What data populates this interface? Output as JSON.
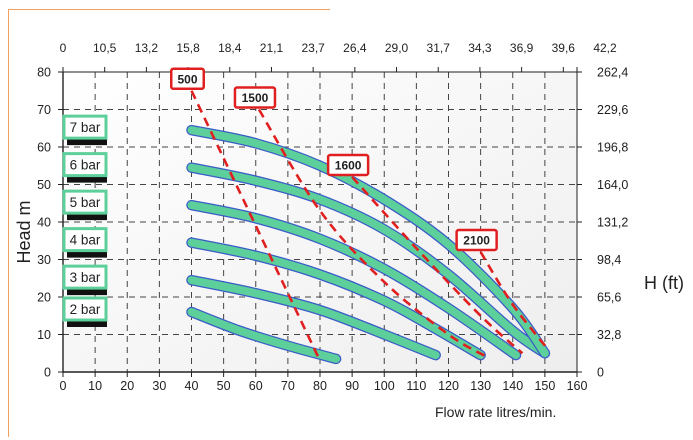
{
  "chart_data": {
    "type": "line",
    "xlabel": "Flow rate litres/min.",
    "ylabel_left": "Head m",
    "ylabel_right": "H (ft)",
    "xlim": [
      0,
      160
    ],
    "ylim": [
      0,
      80
    ],
    "x_ticks": [
      0,
      10,
      20,
      30,
      40,
      50,
      60,
      70,
      80,
      90,
      100,
      110,
      120,
      130,
      140,
      150,
      160
    ],
    "y_ticks": [
      0,
      10,
      20,
      30,
      40,
      50,
      60,
      70,
      80
    ],
    "top_axis_ticks": [
      "0",
      "10,5",
      "13,2",
      "15,8",
      "18,4",
      "21,1",
      "23,7",
      "26,4",
      "29,0",
      "31,7",
      "34,3",
      "36,9",
      "39,6",
      "42,2"
    ],
    "right_axis_ticks": [
      "0",
      "32,8",
      "65,6",
      "98,4",
      "131,2",
      "164,0",
      "196,8",
      "229,6",
      "262,4"
    ],
    "grid": true,
    "series": [
      {
        "name": "2 bar",
        "x": [
          40,
          55,
          70,
          85
        ],
        "y": [
          16,
          11,
          7,
          3.5
        ]
      },
      {
        "name": "3 bar",
        "x": [
          40,
          60,
          80,
          100,
          116
        ],
        "y": [
          24.5,
          21,
          16.5,
          10,
          4.5
        ]
      },
      {
        "name": "4 bar",
        "x": [
          40,
          60,
          80,
          100,
          115,
          130
        ],
        "y": [
          34.5,
          31,
          26,
          19,
          12,
          4.5
        ]
      },
      {
        "name": "5 bar",
        "x": [
          40,
          60,
          80,
          100,
          120,
          141
        ],
        "y": [
          44.5,
          41,
          35.5,
          27.5,
          17,
          4.5
        ]
      },
      {
        "name": "6 bar",
        "x": [
          40,
          60,
          80,
          100,
          120,
          140,
          150
        ],
        "y": [
          54.5,
          51,
          46,
          38,
          26,
          11,
          5
        ]
      },
      {
        "name": "7 bar",
        "x": [
          40,
          60,
          80,
          100,
          120,
          140,
          150
        ],
        "y": [
          64.5,
          61,
          55,
          46,
          34,
          17,
          5
        ]
      }
    ],
    "rpm_lines": [
      {
        "label": "500",
        "x": [
          40,
          80
        ],
        "y": [
          75,
          3
        ]
      },
      {
        "label": "1500",
        "x": [
          61,
          80,
          100,
          120,
          132
        ],
        "y": [
          70,
          43,
          24,
          10,
          4
        ]
      },
      {
        "label": "1600",
        "x": [
          90,
          110,
          130,
          143
        ],
        "y": [
          52,
          33,
          15,
          5
        ]
      },
      {
        "label": "2100",
        "x": [
          130,
          140,
          151
        ],
        "y": [
          32,
          18,
          6
        ]
      }
    ]
  },
  "colors": {
    "pressure_curve": "#5ccf9a",
    "pressure_curve_edge": "#3b5bc9",
    "rpm_line": "#e02020",
    "rpm_box": "#e02020",
    "pressure_box": "#5ccf9a",
    "grid": "#444444",
    "background": "#f7f7f7"
  }
}
